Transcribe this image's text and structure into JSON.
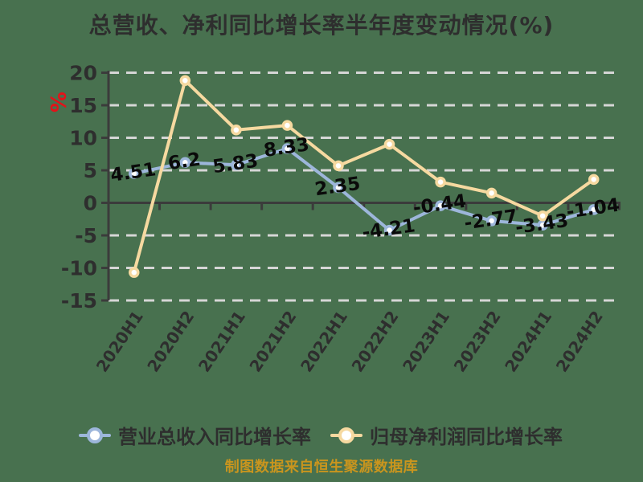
{
  "chart_data": {
    "type": "line",
    "title": "总营收、净利同比增长率半年度变动情况(%)",
    "unit_label": "%",
    "categories": [
      "2020H1",
      "2020H2",
      "2021H1",
      "2021H2",
      "2022H1",
      "2022H2",
      "2023H1",
      "2023H2",
      "2024H1",
      "2024H2"
    ],
    "series": [
      {
        "name": "营业总收入同比增长率",
        "color": "#9db6db",
        "values": [
          4.51,
          6.2,
          5.83,
          8.33,
          2.35,
          -4.21,
          -0.44,
          -2.77,
          -3.43,
          -1.04
        ],
        "show_labels": true
      },
      {
        "name": "归母净利润同比增长率",
        "color": "#f6d9a0",
        "values": [
          -10.7,
          18.8,
          11.2,
          11.9,
          5.7,
          9.0,
          3.2,
          1.5,
          -2.0,
          3.6
        ],
        "show_labels": false
      }
    ],
    "y_ticks": [
      20,
      15,
      10,
      5,
      0,
      -5,
      -10,
      -15
    ],
    "ylim": [
      -15,
      20
    ],
    "grid": true,
    "legend_position": "bottom",
    "source_note": "制图数据来自恒生聚源数据库"
  },
  "colors": {
    "background": "#48714f",
    "axis": "#3b3b3b",
    "gridline": "#d6d6d6",
    "text": "#2e2e2e",
    "data_label": "#0a0a0a",
    "unit_label": "#e31219",
    "source_note": "#c9951e",
    "marker_fill": "#ffffff"
  }
}
